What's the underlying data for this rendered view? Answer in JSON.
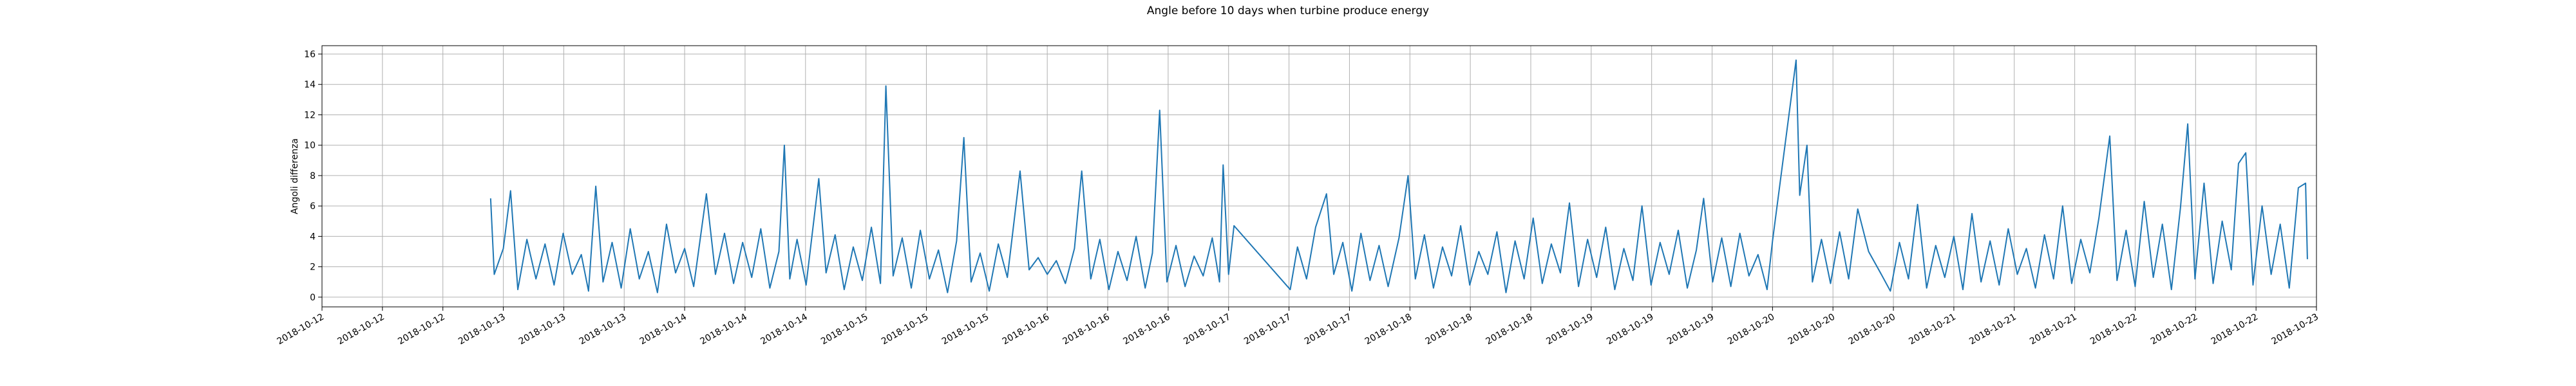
{
  "chart_data": {
    "type": "line",
    "title": "Angle before 10 days when turbine produce energy",
    "y_label": "Angoli differenza",
    "grid": true,
    "xlim": [
      0,
      11
    ],
    "ylim": [
      -0.64,
      16.55
    ],
    "yticks": [
      0,
      2,
      4,
      6,
      8,
      10,
      12,
      14,
      16
    ],
    "xticks": [
      {
        "value": 0,
        "label": "2018-10-12"
      },
      {
        "value": 0.3333,
        "label": "2018-10-12"
      },
      {
        "value": 0.6667,
        "label": "2018-10-12"
      },
      {
        "value": 1,
        "label": "2018-10-13"
      },
      {
        "value": 1.3333,
        "label": "2018-10-13"
      },
      {
        "value": 1.6667,
        "label": "2018-10-13"
      },
      {
        "value": 2,
        "label": "2018-10-14"
      },
      {
        "value": 2.3333,
        "label": "2018-10-14"
      },
      {
        "value": 2.6667,
        "label": "2018-10-14"
      },
      {
        "value": 3,
        "label": "2018-10-15"
      },
      {
        "value": 3.3333,
        "label": "2018-10-15"
      },
      {
        "value": 3.6667,
        "label": "2018-10-15"
      },
      {
        "value": 4,
        "label": "2018-10-16"
      },
      {
        "value": 4.3333,
        "label": "2018-10-16"
      },
      {
        "value": 4.6667,
        "label": "2018-10-16"
      },
      {
        "value": 5,
        "label": "2018-10-17"
      },
      {
        "value": 5.3333,
        "label": "2018-10-17"
      },
      {
        "value": 5.6667,
        "label": "2018-10-17"
      },
      {
        "value": 6,
        "label": "2018-10-18"
      },
      {
        "value": 6.3333,
        "label": "2018-10-18"
      },
      {
        "value": 6.6667,
        "label": "2018-10-18"
      },
      {
        "value": 7,
        "label": "2018-10-19"
      },
      {
        "value": 7.3333,
        "label": "2018-10-19"
      },
      {
        "value": 7.6667,
        "label": "2018-10-19"
      },
      {
        "value": 8,
        "label": "2018-10-20"
      },
      {
        "value": 8.3333,
        "label": "2018-10-20"
      },
      {
        "value": 8.6667,
        "label": "2018-10-20"
      },
      {
        "value": 9,
        "label": "2018-10-21"
      },
      {
        "value": 9.3333,
        "label": "2018-10-21"
      },
      {
        "value": 9.6667,
        "label": "2018-10-21"
      },
      {
        "value": 10,
        "label": "2018-10-22"
      },
      {
        "value": 10.3333,
        "label": "2018-10-22"
      },
      {
        "value": 10.6667,
        "label": "2018-10-22"
      },
      {
        "value": 11,
        "label": "2018-10-23"
      }
    ],
    "series": [
      {
        "color": "#1f77b4",
        "x": [
          0.93,
          0.95,
          1.0,
          1.04,
          1.08,
          1.13,
          1.18,
          1.23,
          1.28,
          1.33,
          1.38,
          1.43,
          1.47,
          1.51,
          1.55,
          1.6,
          1.65,
          1.7,
          1.75,
          1.8,
          1.85,
          1.9,
          1.95,
          2.0,
          2.05,
          2.12,
          2.17,
          2.22,
          2.27,
          2.32,
          2.37,
          2.42,
          2.47,
          2.52,
          2.55,
          2.58,
          2.62,
          2.67,
          2.74,
          2.78,
          2.83,
          2.88,
          2.93,
          2.98,
          3.03,
          3.08,
          3.11,
          3.15,
          3.2,
          3.25,
          3.3,
          3.35,
          3.4,
          3.45,
          3.5,
          3.54,
          3.58,
          3.63,
          3.68,
          3.73,
          3.78,
          3.85,
          3.9,
          3.95,
          4.0,
          4.05,
          4.1,
          4.15,
          4.19,
          4.24,
          4.29,
          4.34,
          4.39,
          4.44,
          4.49,
          4.54,
          4.58,
          4.62,
          4.66,
          4.71,
          4.76,
          4.81,
          4.86,
          4.91,
          4.95,
          4.97,
          5.0,
          5.03,
          5.34,
          5.38,
          5.43,
          5.48,
          5.54,
          5.58,
          5.63,
          5.68,
          5.73,
          5.78,
          5.83,
          5.88,
          5.94,
          5.99,
          6.03,
          6.08,
          6.13,
          6.18,
          6.23,
          6.28,
          6.33,
          6.38,
          6.43,
          6.48,
          6.53,
          6.58,
          6.63,
          6.68,
          6.73,
          6.78,
          6.83,
          6.88,
          6.93,
          6.98,
          7.03,
          7.08,
          7.13,
          7.18,
          7.23,
          7.28,
          7.33,
          7.38,
          7.43,
          7.48,
          7.53,
          7.58,
          7.62,
          7.67,
          7.72,
          7.77,
          7.82,
          7.87,
          7.92,
          7.97,
          8.0,
          8.13,
          8.15,
          8.19,
          8.22,
          8.27,
          8.32,
          8.37,
          8.42,
          8.47,
          8.53,
          8.6,
          8.65,
          8.7,
          8.75,
          8.8,
          8.85,
          8.9,
          8.95,
          9.0,
          9.05,
          9.1,
          9.15,
          9.2,
          9.25,
          9.3,
          9.35,
          9.4,
          9.45,
          9.5,
          9.55,
          9.6,
          9.65,
          9.7,
          9.75,
          9.8,
          9.86,
          9.9,
          9.95,
          10.0,
          10.05,
          10.1,
          10.15,
          10.2,
          10.25,
          10.29,
          10.33,
          10.38,
          10.43,
          10.48,
          10.53,
          10.57,
          10.61,
          10.65,
          10.7,
          10.75,
          10.8,
          10.85,
          10.9,
          10.94,
          10.95
        ],
        "values": [
          6.5,
          1.5,
          3.2,
          7.0,
          0.5,
          3.8,
          1.2,
          3.5,
          0.8,
          4.2,
          1.5,
          2.8,
          0.4,
          7.3,
          1.0,
          3.6,
          0.6,
          4.5,
          1.2,
          3.0,
          0.3,
          4.8,
          1.6,
          3.2,
          0.7,
          6.8,
          1.5,
          4.2,
          0.9,
          3.6,
          1.3,
          4.5,
          0.6,
          3.0,
          10.0,
          1.2,
          3.8,
          0.8,
          7.8,
          1.6,
          4.1,
          0.5,
          3.3,
          1.1,
          4.6,
          0.9,
          13.9,
          1.4,
          3.9,
          0.6,
          4.4,
          1.2,
          3.1,
          0.3,
          3.7,
          10.5,
          1.0,
          2.9,
          0.4,
          3.5,
          1.3,
          8.3,
          1.8,
          2.6,
          1.5,
          2.4,
          0.9,
          3.2,
          8.3,
          1.2,
          3.8,
          0.5,
          3.0,
          1.1,
          4.0,
          0.6,
          2.9,
          12.3,
          1.0,
          3.4,
          0.7,
          2.7,
          1.4,
          3.9,
          1.0,
          8.7,
          1.5,
          4.7,
          0.5,
          3.3,
          1.2,
          4.6,
          6.8,
          1.5,
          3.6,
          0.4,
          4.2,
          1.1,
          3.4,
          0.7,
          3.9,
          8.0,
          1.2,
          4.1,
          0.6,
          3.3,
          1.4,
          4.7,
          0.8,
          3.0,
          1.5,
          4.3,
          0.3,
          3.7,
          1.2,
          5.2,
          0.9,
          3.5,
          1.6,
          6.2,
          0.7,
          3.8,
          1.3,
          4.6,
          0.5,
          3.2,
          1.1,
          6.0,
          0.8,
          3.6,
          1.5,
          4.4,
          0.6,
          3.1,
          6.5,
          1.0,
          3.9,
          0.7,
          4.2,
          1.4,
          2.8,
          0.5,
          3.7,
          15.6,
          6.7,
          10.0,
          1.0,
          3.8,
          0.9,
          4.3,
          1.2,
          5.8,
          3.0,
          1.5,
          0.4,
          3.6,
          1.2,
          6.1,
          0.6,
          3.4,
          1.3,
          4.0,
          0.5,
          5.5,
          1.0,
          3.7,
          0.8,
          4.5,
          1.5,
          3.2,
          0.6,
          4.1,
          1.2,
          6.0,
          0.9,
          3.8,
          1.6,
          5.2,
          10.6,
          1.1,
          4.4,
          0.7,
          6.3,
          1.3,
          4.8,
          0.5,
          5.9,
          11.4,
          1.2,
          7.5,
          0.9,
          5.0,
          1.8,
          8.8,
          9.5,
          0.8,
          6.0,
          1.5,
          4.8,
          0.6,
          7.2,
          7.5,
          2.5
        ]
      }
    ]
  }
}
